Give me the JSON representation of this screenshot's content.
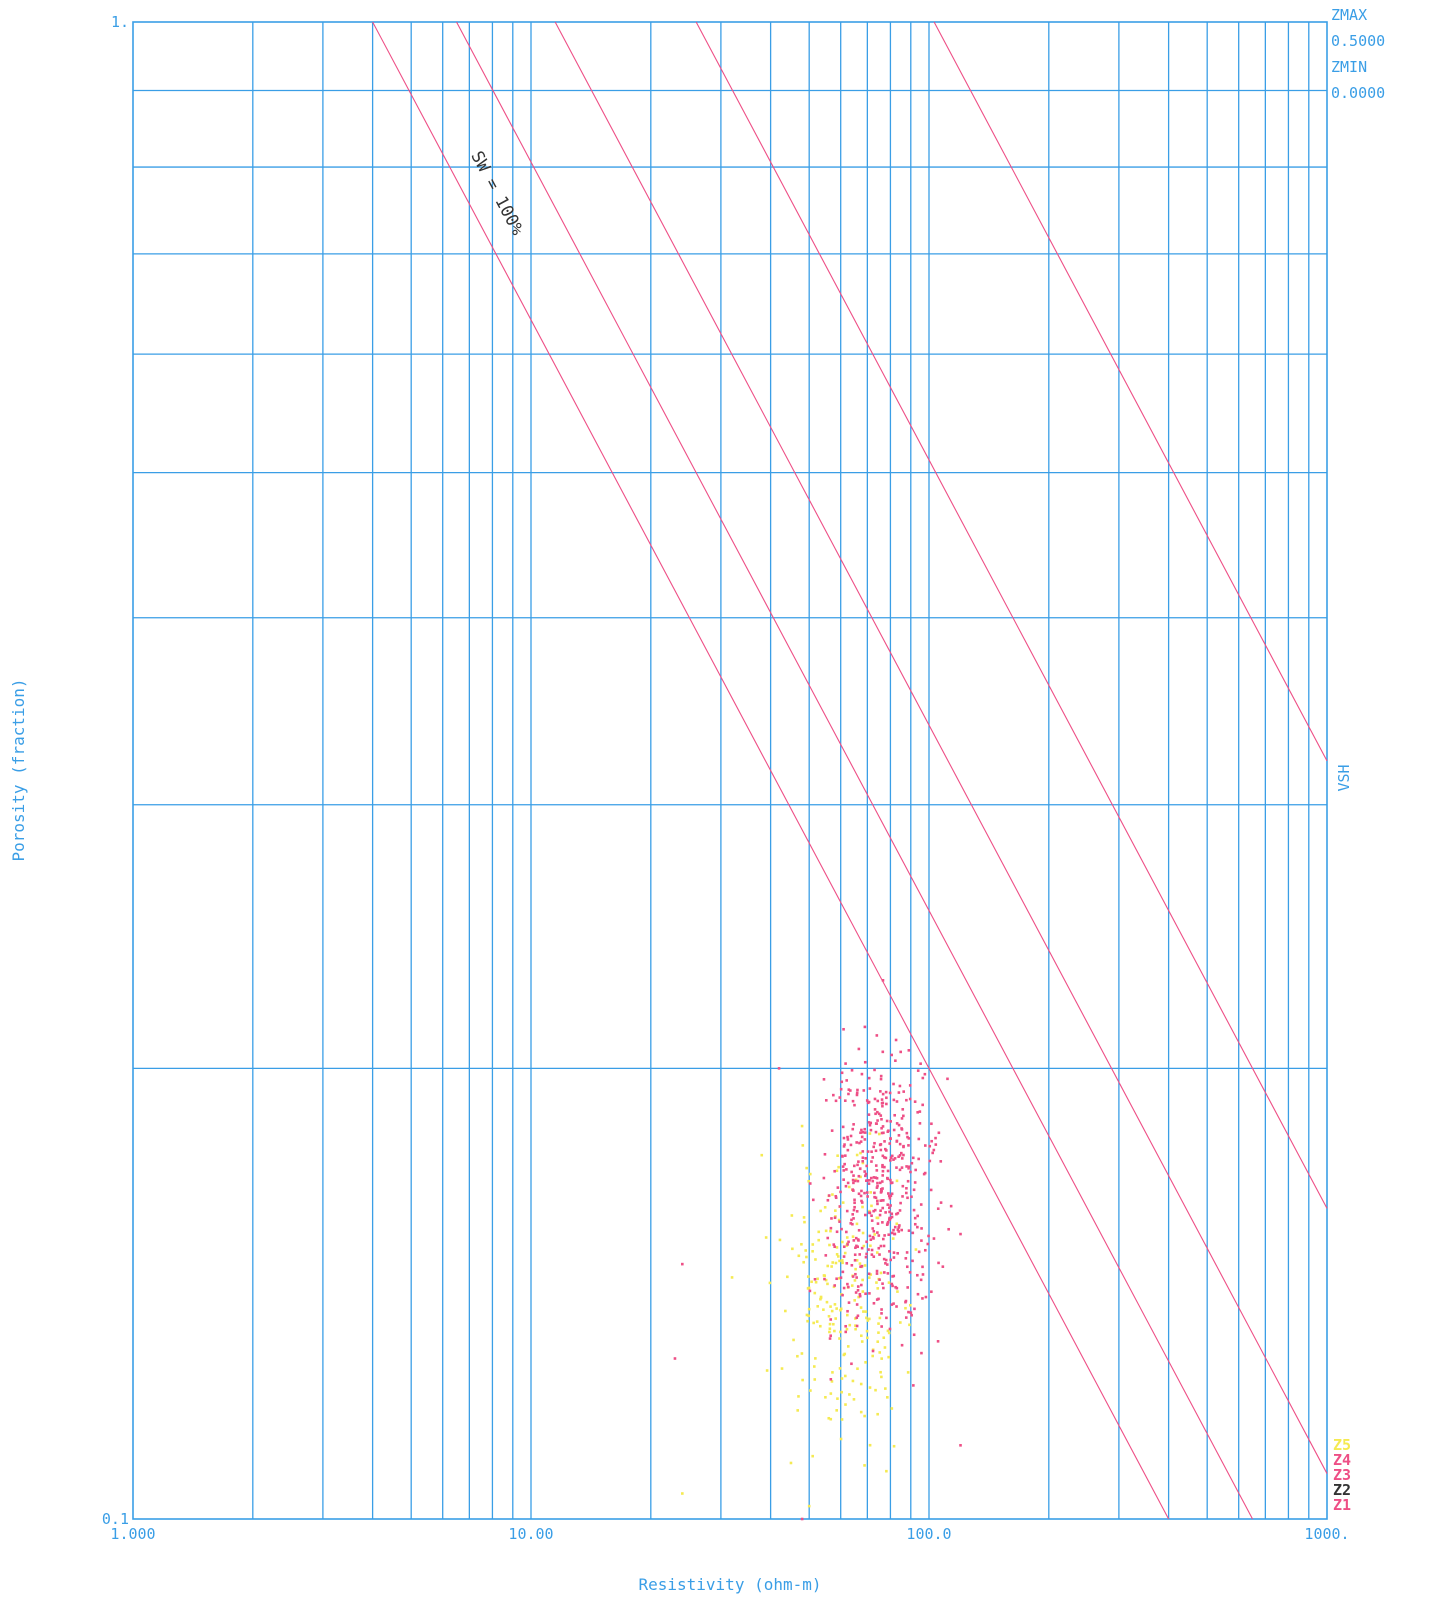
{
  "chart_data": {
    "type": "scatter",
    "title": "",
    "xlabel": "Resistivity (ohm-m)",
    "ylabel": "Porosity (fraction)",
    "x_scale": "log",
    "y_scale": "log",
    "xlim": [
      1,
      1000
    ],
    "ylim": [
      0.1,
      1
    ],
    "x_tick_labels": [
      {
        "value": 1,
        "label": "1.000"
      },
      {
        "value": 10,
        "label": "10.00"
      },
      {
        "value": 100,
        "label": "100.0"
      },
      {
        "value": 1000,
        "label": "1000."
      }
    ],
    "y_tick_labels": [
      {
        "value": 1,
        "label": "1."
      },
      {
        "value": 0.1,
        "label": "0.1"
      }
    ],
    "grid": true,
    "sw_line_annotation": "SW = 100%",
    "sw_lines": [
      {
        "x_at_por_1": 4.0,
        "x_at_por_0_1": 400
      },
      {
        "x_at_por_1": 6.5,
        "x_at_por_0_1": 650
      },
      {
        "x_at_por_1": 11.5,
        "x_at_por_0_1": 1150
      },
      {
        "x_at_por_1": 26,
        "x_at_por_0_1": 2600
      },
      {
        "x_at_por_1": 103,
        "x_at_por_0_1": 10300
      }
    ],
    "zmax_label": "ZMAX",
    "zmax_value": "0.5000",
    "zmin_label": "ZMIN",
    "zmin_value": "0.0000",
    "z_axis_label": "VSH",
    "zone_legend": [
      {
        "label": "Z5",
        "color": "#f5ea52"
      },
      {
        "label": "Z4",
        "color": "#ee4f86"
      },
      {
        "label": "Z3",
        "color": "#ee4f86"
      },
      {
        "label": "Z2",
        "color": "#333333"
      },
      {
        "label": "Z1",
        "color": "#ee4f86"
      }
    ],
    "series": [
      {
        "color": "#ee4f86",
        "cluster": {
          "x_center": 75,
          "y_center": 0.165,
          "x_spread_log": 0.1,
          "y_spread_log": 0.07,
          "count": 520
        },
        "outliers": [
          [
            24,
            0.148
          ],
          [
            23,
            0.128
          ],
          [
            120,
            0.112
          ],
          [
            48,
            0.1
          ],
          [
            42,
            0.2
          ],
          [
            120,
            0.155
          ]
        ]
      },
      {
        "color": "#f5ea52",
        "cluster": {
          "x_center": 62,
          "y_center": 0.14,
          "x_spread_log": 0.11,
          "y_spread_log": 0.065,
          "count": 230
        },
        "outliers": [
          [
            24,
            0.104
          ],
          [
            38,
            0.175
          ],
          [
            45,
            0.109
          ],
          [
            32,
            0.145
          ],
          [
            50,
            0.102
          ]
        ]
      }
    ]
  }
}
